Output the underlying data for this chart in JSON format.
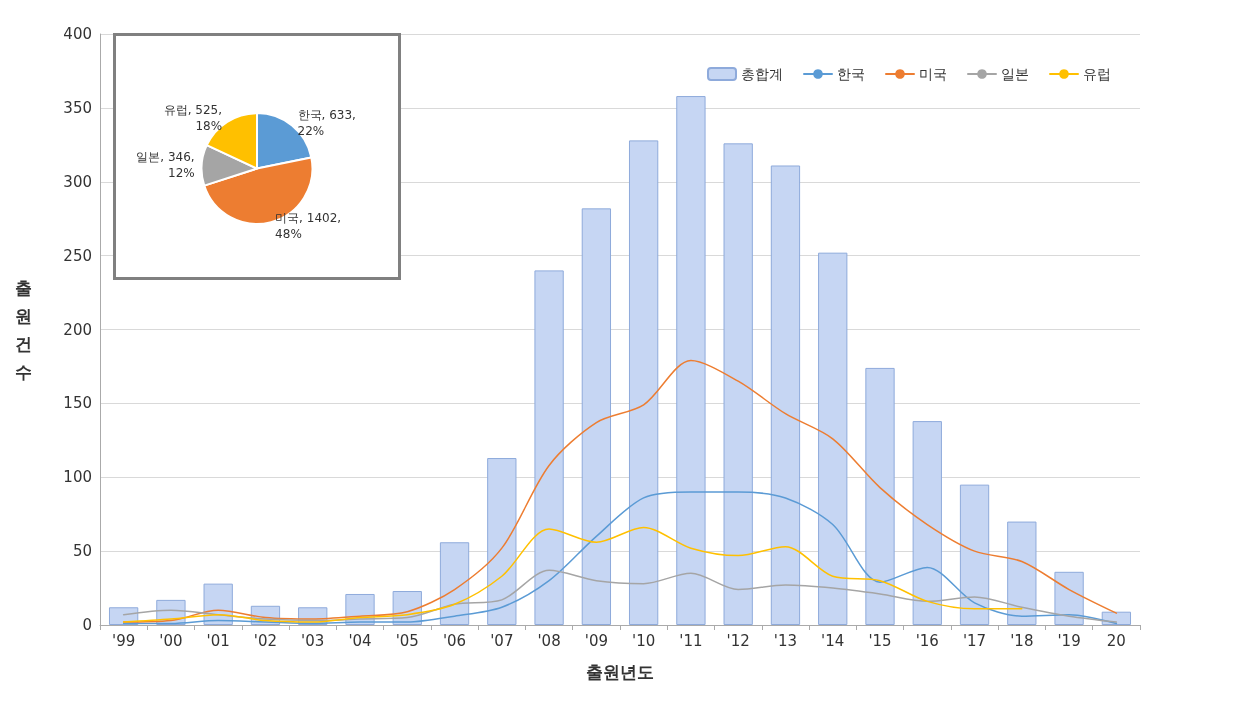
{
  "chart_data": [
    {
      "type": "bar",
      "xlabel": "출원년도",
      "ylabel": "출원건수",
      "categories": [
        "'99",
        "'00",
        "'01",
        "'02",
        "'03",
        "'04",
        "'05",
        "'06",
        "'07",
        "'08",
        "'09",
        "'10",
        "'11",
        "'12",
        "'13",
        "'14",
        "'15",
        "'16",
        "'17",
        "'18",
        "'19",
        "20"
      ],
      "series": [
        {
          "name": "총합계",
          "color": "#c6d6f3",
          "values": [
            12,
            17,
            28,
            13,
            12,
            21,
            23,
            56,
            113,
            240,
            282,
            328,
            358,
            326,
            311,
            252,
            174,
            138,
            95,
            70,
            36,
            9
          ]
        },
        {
          "name": "한국",
          "type": "line",
          "color": "#5b9bd5",
          "values": [
            1,
            1,
            3,
            2,
            1,
            2,
            2,
            6,
            12,
            30,
            60,
            86,
            90,
            90,
            86,
            68,
            29,
            39,
            15,
            6,
            7,
            1
          ]
        },
        {
          "name": "미국",
          "type": "line",
          "color": "#ed7d31",
          "values": [
            2,
            3,
            10,
            5,
            4,
            6,
            9,
            24,
            52,
            108,
            137,
            149,
            179,
            165,
            143,
            126,
            93,
            68,
            50,
            43,
            24,
            8
          ]
        },
        {
          "name": "일본",
          "type": "line",
          "color": "#a5a5a5",
          "values": [
            7,
            10,
            7,
            4,
            3,
            4,
            5,
            14,
            17,
            37,
            30,
            28,
            35,
            24,
            27,
            25,
            21,
            16,
            19,
            12,
            6,
            2
          ]
        },
        {
          "name": "유럽",
          "type": "line",
          "color": "#ffc000",
          "values": [
            2,
            4,
            7,
            3,
            2,
            5,
            7,
            14,
            33,
            65,
            56,
            66,
            52,
            47,
            53,
            33,
            30,
            16,
            11,
            11,
            null,
            null
          ]
        }
      ],
      "ylim": [
        0,
        400
      ],
      "yticks": [
        0,
        50,
        100,
        150,
        200,
        250,
        300,
        350,
        400
      ],
      "grid": "y",
      "legend": "top right",
      "marker": "none",
      "line_style": "solid"
    },
    {
      "type": "pie",
      "categories": [
        "한국",
        "미국",
        "일본",
        "유럽"
      ],
      "values": [
        633,
        1402,
        346,
        525
      ],
      "colors": [
        "#5b9bd5",
        "#ed7d31",
        "#a5a5a5",
        "#ffc000"
      ],
      "value_labels": [
        "633, 22%",
        "1402, 48%",
        "346, 12%",
        "525, 18%"
      ]
    }
  ]
}
